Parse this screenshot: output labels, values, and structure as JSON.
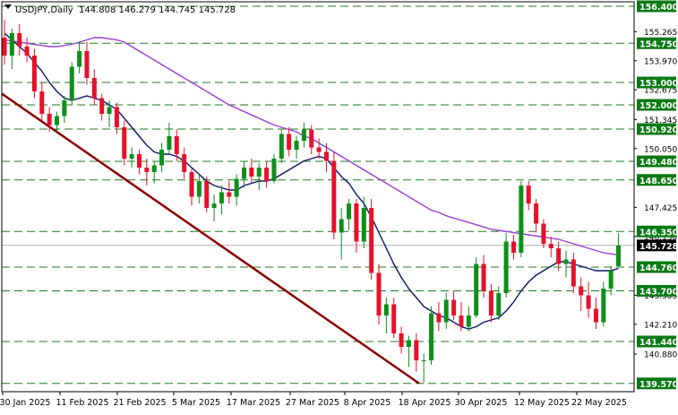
{
  "header": {
    "symbol": "USDJPY,Daily",
    "ohlc": "144.808 146.279 144.745 145.728"
  },
  "colors": {
    "bull": "#0d8f1a",
    "bear": "#e8102a",
    "ma_fast": "#0a1464",
    "ma_slow": "#9b3fd6",
    "trendline": "#8b0000",
    "hline": "#1f7a1f",
    "label_bg": "#0a7a14",
    "price_label_bg": "#000000",
    "grid": "#b0b0b0"
  },
  "chart_data": {
    "type": "candlestick",
    "symbol": "USDJPY",
    "timeframe": "Daily",
    "ylim": [
      139.2,
      156.6
    ],
    "y_axis_ticks": [
      "155.265",
      "153.970",
      "152.675",
      "151.345",
      "150.050",
      "147.425",
      "146.130",
      "143.505",
      "142.210",
      "140.880"
    ],
    "x_axis_labels": [
      "30 Jan 2025",
      "11 Feb 2025",
      "21 Feb 2025",
      "5 Mar 2025",
      "17 Mar 2025",
      "27 Mar 2025",
      "8 Apr 2025",
      "18 Apr 2025",
      "30 Apr 2025",
      "12 May 2025",
      "22 May 2025"
    ],
    "horizontal_levels": [
      156.4,
      154.75,
      153.0,
      152.0,
      150.92,
      149.48,
      148.65,
      146.35,
      144.76,
      143.7,
      141.44,
      139.57
    ],
    "horizontal_level_labels": [
      "156.400",
      "154.750",
      "153.000",
      "152.000",
      "150.920",
      "149.480",
      "148.650",
      "146.350",
      "144.760",
      "143.700",
      "141.440",
      "139.570"
    ],
    "current_price": 145.728,
    "current_price_label": "145.728",
    "trendline": {
      "start_value": 152.5,
      "end_value": 139.57
    },
    "candles_ohlc": [
      [
        155.0,
        155.8,
        153.8,
        154.2
      ],
      [
        154.2,
        155.4,
        153.6,
        155.2
      ],
      [
        155.2,
        155.6,
        154.2,
        154.6
      ],
      [
        154.6,
        155.0,
        153.9,
        154.2
      ],
      [
        154.2,
        154.5,
        152.3,
        152.6
      ],
      [
        152.6,
        153.0,
        151.3,
        151.6
      ],
      [
        151.6,
        151.9,
        150.8,
        151.1
      ],
      [
        151.1,
        151.7,
        150.8,
        151.5
      ],
      [
        151.5,
        152.4,
        151.2,
        152.2
      ],
      [
        152.2,
        153.9,
        152.0,
        153.7
      ],
      [
        153.7,
        154.8,
        153.4,
        154.4
      ],
      [
        154.4,
        154.8,
        152.9,
        153.2
      ],
      [
        153.2,
        153.6,
        152.0,
        152.3
      ],
      [
        152.3,
        152.5,
        151.3,
        151.6
      ],
      [
        151.6,
        152.2,
        151.0,
        151.9
      ],
      [
        151.9,
        152.1,
        150.7,
        151.0
      ],
      [
        151.0,
        151.3,
        149.3,
        149.6
      ],
      [
        149.6,
        150.1,
        149.2,
        149.8
      ],
      [
        149.8,
        150.0,
        148.9,
        149.2
      ],
      [
        149.2,
        149.6,
        148.4,
        149.0
      ],
      [
        149.0,
        149.5,
        148.5,
        149.3
      ],
      [
        149.3,
        150.3,
        149.0,
        150.0
      ],
      [
        150.0,
        151.2,
        149.8,
        150.6
      ],
      [
        150.6,
        150.9,
        149.5,
        149.8
      ],
      [
        149.8,
        150.1,
        148.7,
        149.0
      ],
      [
        149.0,
        149.2,
        147.5,
        147.9
      ],
      [
        147.9,
        148.9,
        147.6,
        148.6
      ],
      [
        148.6,
        148.8,
        147.2,
        147.4
      ],
      [
        147.4,
        148.0,
        146.8,
        147.6
      ],
      [
        147.6,
        148.4,
        147.1,
        148.1
      ],
      [
        148.1,
        148.6,
        147.6,
        147.9
      ],
      [
        147.9,
        148.9,
        147.5,
        148.7
      ],
      [
        148.7,
        149.5,
        148.3,
        149.2
      ],
      [
        149.2,
        149.6,
        148.5,
        148.8
      ],
      [
        148.8,
        149.4,
        148.2,
        149.2
      ],
      [
        149.2,
        149.5,
        148.3,
        148.6
      ],
      [
        148.6,
        149.8,
        148.5,
        149.6
      ],
      [
        149.6,
        150.9,
        149.4,
        150.7
      ],
      [
        150.7,
        151.0,
        149.7,
        150.0
      ],
      [
        150.0,
        150.6,
        149.6,
        150.4
      ],
      [
        150.4,
        151.2,
        150.1,
        150.9
      ],
      [
        150.9,
        151.1,
        149.8,
        150.1
      ],
      [
        150.1,
        150.5,
        149.6,
        149.9
      ],
      [
        149.9,
        150.3,
        149.0,
        149.5
      ],
      [
        149.5,
        149.9,
        146.0,
        146.3
      ],
      [
        146.3,
        147.4,
        145.1,
        146.9
      ],
      [
        146.9,
        147.8,
        146.4,
        147.6
      ],
      [
        147.6,
        147.8,
        145.4,
        145.9
      ],
      [
        145.9,
        147.9,
        145.6,
        147.4
      ],
      [
        147.4,
        147.8,
        144.2,
        144.5
      ],
      [
        144.5,
        144.9,
        142.2,
        142.6
      ],
      [
        142.6,
        143.4,
        141.8,
        143.1
      ],
      [
        143.1,
        143.4,
        141.6,
        141.8
      ],
      [
        141.8,
        142.1,
        140.9,
        141.2
      ],
      [
        141.2,
        141.7,
        140.3,
        141.5
      ],
      [
        141.5,
        141.8,
        140.1,
        140.6
      ],
      [
        140.6,
        140.9,
        139.6,
        140.6
      ],
      [
        140.6,
        143.0,
        140.4,
        142.7
      ],
      [
        142.7,
        143.2,
        141.9,
        142.3
      ],
      [
        142.3,
        143.6,
        142.0,
        143.3
      ],
      [
        143.3,
        143.7,
        142.4,
        142.6
      ],
      [
        142.6,
        143.2,
        141.9,
        142.1
      ],
      [
        142.1,
        143.0,
        141.9,
        142.6
      ],
      [
        142.6,
        145.2,
        142.5,
        144.9
      ],
      [
        144.9,
        145.3,
        143.4,
        143.7
      ],
      [
        143.7,
        144.0,
        142.3,
        142.6
      ],
      [
        142.6,
        143.9,
        142.4,
        143.6
      ],
      [
        143.6,
        146.3,
        143.4,
        145.9
      ],
      [
        145.9,
        146.2,
        145.1,
        145.4
      ],
      [
        145.4,
        148.6,
        145.2,
        148.4
      ],
      [
        148.4,
        148.6,
        147.3,
        147.6
      ],
      [
        147.6,
        147.8,
        146.3,
        146.7
      ],
      [
        146.7,
        146.9,
        145.6,
        145.8
      ],
      [
        145.8,
        146.1,
        145.2,
        145.6
      ],
      [
        145.6,
        145.9,
        144.6,
        144.9
      ],
      [
        144.9,
        145.5,
        144.3,
        145.1
      ],
      [
        145.1,
        145.4,
        143.6,
        143.9
      ],
      [
        143.9,
        144.3,
        142.8,
        143.5
      ],
      [
        143.5,
        144.1,
        142.5,
        142.9
      ],
      [
        142.9,
        143.4,
        142.0,
        142.3
      ],
      [
        142.3,
        144.1,
        142.1,
        143.8
      ],
      [
        143.8,
        144.8,
        143.5,
        144.6
      ],
      [
        144.808,
        146.279,
        144.745,
        145.728
      ]
    ],
    "ma_fast": [
      155.2,
      154.9,
      154.6,
      154.3,
      153.9,
      153.5,
      153.0,
      152.6,
      152.3,
      152.2,
      152.3,
      152.4,
      152.3,
      152.2,
      152.0,
      151.8,
      151.4,
      151.0,
      150.6,
      150.2,
      149.9,
      149.8,
      149.8,
      149.7,
      149.5,
      149.2,
      148.9,
      148.6,
      148.4,
      148.3,
      148.2,
      148.2,
      148.4,
      148.5,
      148.6,
      148.6,
      148.7,
      148.9,
      149.1,
      149.3,
      149.5,
      149.6,
      149.7,
      149.6,
      149.2,
      148.8,
      148.5,
      148.0,
      147.6,
      147.0,
      146.3,
      145.6,
      144.9,
      144.3,
      143.8,
      143.4,
      143.0,
      142.8,
      142.6,
      142.5,
      142.3,
      142.1,
      142.0,
      142.1,
      142.3,
      142.4,
      142.5,
      142.8,
      143.2,
      143.7,
      144.1,
      144.4,
      144.6,
      144.8,
      145.0,
      145.0,
      144.9,
      144.8,
      144.7,
      144.6,
      144.6,
      144.6,
      144.7
    ],
    "ma_slow": [
      154.9,
      154.85,
      154.8,
      154.75,
      154.7,
      154.65,
      154.6,
      154.6,
      154.65,
      154.7,
      154.8,
      154.9,
      155.0,
      155.0,
      154.95,
      154.9,
      154.8,
      154.6,
      154.4,
      154.2,
      154.0,
      153.8,
      153.6,
      153.4,
      153.2,
      153.0,
      152.8,
      152.6,
      152.4,
      152.2,
      152.0,
      151.85,
      151.7,
      151.55,
      151.4,
      151.25,
      151.1,
      151.0,
      150.9,
      150.8,
      150.6,
      150.5,
      150.3,
      150.1,
      149.9,
      149.7,
      149.5,
      149.3,
      149.1,
      148.9,
      148.7,
      148.5,
      148.3,
      148.1,
      147.9,
      147.7,
      147.5,
      147.3,
      147.2,
      147.05,
      146.95,
      146.85,
      146.75,
      146.65,
      146.55,
      146.45,
      146.4,
      146.35,
      146.3,
      146.25,
      146.2,
      146.15,
      146.1,
      146.05,
      146.0,
      145.9,
      145.8,
      145.7,
      145.6,
      145.5,
      145.4,
      145.35,
      145.3
    ]
  }
}
